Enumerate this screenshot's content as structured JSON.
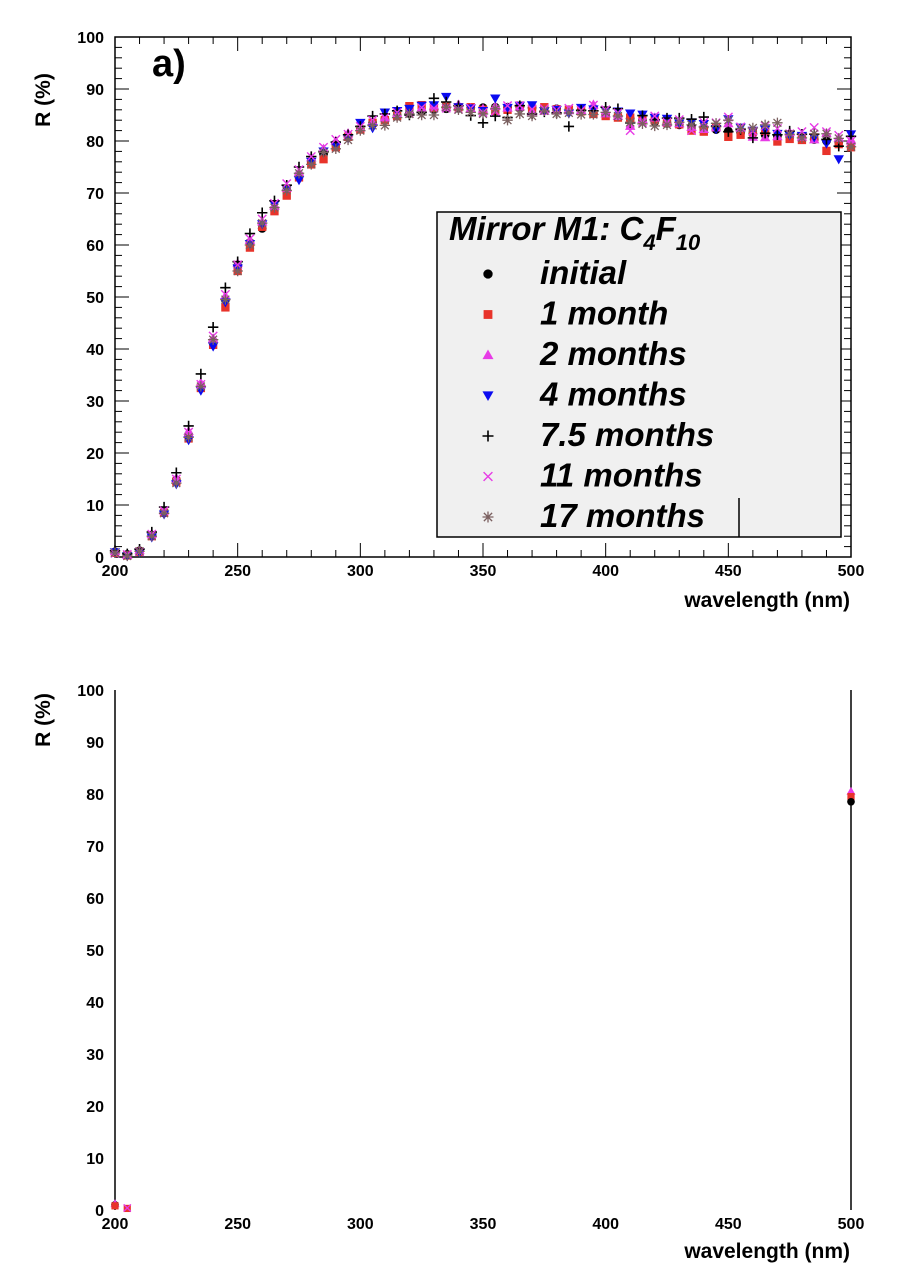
{
  "chart_data": [
    {
      "type": "scatter",
      "panel_label": "a)",
      "xlabel": "wavelength (nm)",
      "ylabel": "R (%)",
      "xlim": [
        200,
        500
      ],
      "ylim": [
        0,
        100
      ],
      "x_ticks": [
        200,
        250,
        300,
        350,
        400,
        450,
        500
      ],
      "y_ticks": [
        0,
        10,
        20,
        30,
        40,
        50,
        60,
        70,
        80,
        90,
        100
      ],
      "legend": {
        "title_main": "Mirror M1: C",
        "title_sub1": "4",
        "title_mid": "F",
        "title_sub2": "10",
        "placement": "right-center"
      },
      "x": [
        200,
        205,
        210,
        215,
        220,
        225,
        230,
        235,
        240,
        245,
        250,
        255,
        260,
        265,
        270,
        275,
        280,
        285,
        290,
        295,
        300,
        305,
        310,
        315,
        320,
        325,
        330,
        335,
        340,
        345,
        350,
        355,
        360,
        365,
        370,
        375,
        380,
        385,
        390,
        395,
        400,
        405,
        410,
        415,
        420,
        425,
        430,
        435,
        440,
        445,
        450,
        455,
        460,
        465,
        470,
        475,
        480,
        485,
        490,
        495,
        500
      ],
      "series": [
        {
          "name": "initial",
          "marker": "circle",
          "color": "#000000",
          "values": [
            1,
            0.5,
            1.2,
            4.2,
            8.7,
            14.8,
            23.5,
            32.8,
            41.5,
            49.5,
            56,
            60.5,
            63.2,
            67,
            70.5,
            73.5,
            75.8,
            77.5,
            79.5,
            81,
            82.3,
            83.5,
            84.2,
            84.8,
            85.3,
            85.7,
            86,
            86.2,
            86.3,
            86.4,
            86.4,
            86.5,
            86.5,
            86.5,
            86.4,
            86.3,
            86.2,
            86,
            85.7,
            85.3,
            85,
            84.7,
            84.3,
            84,
            83.7,
            83.4,
            83.1,
            82.8,
            82.5,
            82.2,
            81.9,
            81.6,
            81.4,
            81.2,
            81,
            80.8,
            80.6,
            80.3,
            80,
            79.8,
            79.5
          ]
        },
        {
          "name": "1 month",
          "marker": "square",
          "color": "#e8332a",
          "values": [
            0.8,
            0.3,
            1,
            4,
            8.5,
            14.5,
            22.8,
            32.5,
            40.8,
            48,
            55,
            59.5,
            63.5,
            66.5,
            69.5,
            73,
            75.5,
            76.5,
            78.8,
            80.8,
            82.2,
            83.5,
            84,
            84.8,
            86.7,
            86.9,
            86.4,
            86.7,
            86.5,
            86.5,
            86,
            85.8,
            86,
            86.8,
            86.2,
            86.5,
            86.1,
            86,
            85.7,
            85.2,
            84.8,
            84.5,
            84.5,
            84.1,
            84,
            83.5,
            83.2,
            82,
            81.8,
            82.7,
            80.8,
            81.2,
            81.7,
            82,
            79.9,
            80.4,
            80.2,
            80.7,
            78.1,
            79.4,
            78.8
          ]
        },
        {
          "name": "2 months",
          "marker": "triangle-up",
          "color": "#e73be6",
          "values": [
            1.1,
            0.4,
            1.3,
            4.5,
            9,
            15.2,
            24.2,
            33.5,
            42,
            50.2,
            56.5,
            61,
            64.5,
            67.5,
            71,
            74,
            76.8,
            78.5,
            80,
            81.5,
            82.6,
            83.6,
            84.5,
            85.2,
            85.8,
            86.4,
            86.8,
            86.5,
            87,
            86.3,
            86.2,
            86.7,
            86.4,
            86.6,
            85.7,
            85.8,
            86.1,
            85.9,
            86,
            87,
            85.3,
            84.8,
            82.9,
            84.2,
            84.5,
            83.6,
            83.4,
            82.7,
            82.3,
            82.6,
            83.4,
            82.5,
            80.8,
            80.7,
            80.9,
            81.7,
            80.8,
            80.3,
            81.5,
            80.6,
            80.3
          ]
        },
        {
          "name": "4 months",
          "marker": "triangle-down",
          "color": "#0a0af0",
          "values": [
            0.9,
            0.2,
            0.9,
            3.8,
            8.2,
            14,
            22.5,
            32,
            40.5,
            49,
            55.5,
            60.2,
            64,
            67.8,
            70.8,
            72.5,
            76,
            78,
            79,
            80.5,
            83.5,
            82.5,
            85.5,
            85.8,
            86.2,
            86.8,
            86.9,
            88.5,
            86.5,
            86.3,
            85.8,
            88.2,
            86.4,
            86.8,
            86.9,
            85.8,
            86,
            85.3,
            86.4,
            86.1,
            85.8,
            85.7,
            85.3,
            85.1,
            84.5,
            84.3,
            83.4,
            83.6,
            83.3,
            82.3,
            84.2,
            82.6,
            82,
            82.2,
            81.4,
            81.1,
            81,
            80.7,
            79.5,
            76.5,
            81.3
          ]
        },
        {
          "name": "7.5 months",
          "marker": "plus",
          "color": "#000000",
          "values": [
            1.2,
            0.6,
            1.5,
            4.8,
            9.6,
            16.2,
            25.2,
            35.2,
            44.2,
            51.8,
            56.8,
            62.2,
            66.2,
            68.5,
            71.5,
            75,
            77,
            78,
            79.8,
            81.2,
            82.8,
            84.8,
            85.2,
            85.8,
            85,
            85.5,
            88.2,
            87.5,
            86.8,
            84.9,
            83.5,
            84.8,
            84.5,
            86.8,
            85.2,
            85.6,
            85.4,
            82.8,
            85.9,
            85.8,
            86.5,
            86.2,
            83.5,
            84.9,
            84.1,
            84.4,
            84.4,
            84.2,
            84.6,
            82.8,
            81.8,
            82.2,
            80.6,
            81.5,
            81.2,
            81.9,
            81.3,
            81.3,
            80.3,
            79,
            80.9
          ]
        },
        {
          "name": "11 months",
          "marker": "cross",
          "color": "#e73be6",
          "values": [
            0.7,
            0.5,
            1,
            4.4,
            8.9,
            15,
            24,
            33.2,
            42.5,
            50.5,
            56.2,
            61.2,
            65,
            68,
            71.8,
            74.5,
            77,
            78.8,
            80.3,
            81.3,
            82.8,
            84,
            84.5,
            85.5,
            85.3,
            86.4,
            86.3,
            86.3,
            86.1,
            86.3,
            85.5,
            85.7,
            86.8,
            86.8,
            86.1,
            86.2,
            85.9,
            86.3,
            85.9,
            86.9,
            86,
            85.4,
            82,
            83.6,
            84.8,
            83.6,
            84.1,
            82,
            83.6,
            83.5,
            84.6,
            82.7,
            81.9,
            82.9,
            82.4,
            81.4,
            81.8,
            82.6,
            81.8,
            81.1,
            80
          ]
        },
        {
          "name": "17 months",
          "marker": "star",
          "color": "#7b6060",
          "values": [
            0.8,
            0.2,
            1.1,
            4,
            8.4,
            14.2,
            23,
            32.8,
            41.8,
            49.5,
            55,
            60,
            64.2,
            67.2,
            70.5,
            73.8,
            75.5,
            77.8,
            78.5,
            80.2,
            82,
            83,
            83,
            84.5,
            85.2,
            85,
            85,
            86.5,
            86,
            85.5,
            85.2,
            86.2,
            84,
            85.2,
            84.8,
            85.8,
            85.2,
            85.4,
            85.1,
            85.1,
            85.5,
            84.8,
            83.6,
            83.3,
            82.9,
            83.1,
            83.6,
            83.1,
            82.7,
            83.4,
            84,
            82.4,
            82.5,
            83.1,
            83.5,
            81.3,
            80.6,
            81.4,
            81.4,
            80.5,
            78.9
          ]
        }
      ]
    },
    {
      "type": "scatter",
      "xlabel": "wavelength (nm)",
      "ylabel": "R (%)",
      "xlim": [
        200,
        500
      ],
      "ylim": [
        0,
        100
      ],
      "x_ticks": [
        200,
        250,
        300,
        350,
        400,
        450,
        500
      ],
      "y_ticks": [
        0,
        10,
        20,
        30,
        40,
        50,
        60,
        70,
        80,
        90,
        100
      ],
      "points": [
        {
          "x": 200,
          "y": 1.0,
          "marker": "circle",
          "color": "#000000"
        },
        {
          "x": 200,
          "y": 1.2,
          "marker": "triangle-up",
          "color": "#e73be6"
        },
        {
          "x": 200,
          "y": 0.8,
          "marker": "square",
          "color": "#e8332a"
        },
        {
          "x": 205,
          "y": 0.3,
          "marker": "square",
          "color": "#e8332a"
        },
        {
          "x": 205,
          "y": 0.4,
          "marker": "cross",
          "color": "#e73be6"
        },
        {
          "x": 500,
          "y": 80.5,
          "marker": "triangle-up",
          "color": "#e73be6"
        },
        {
          "x": 500,
          "y": 79.5,
          "marker": "square",
          "color": "#e8332a"
        },
        {
          "x": 500,
          "y": 78.5,
          "marker": "circle",
          "color": "#000000"
        }
      ]
    }
  ]
}
